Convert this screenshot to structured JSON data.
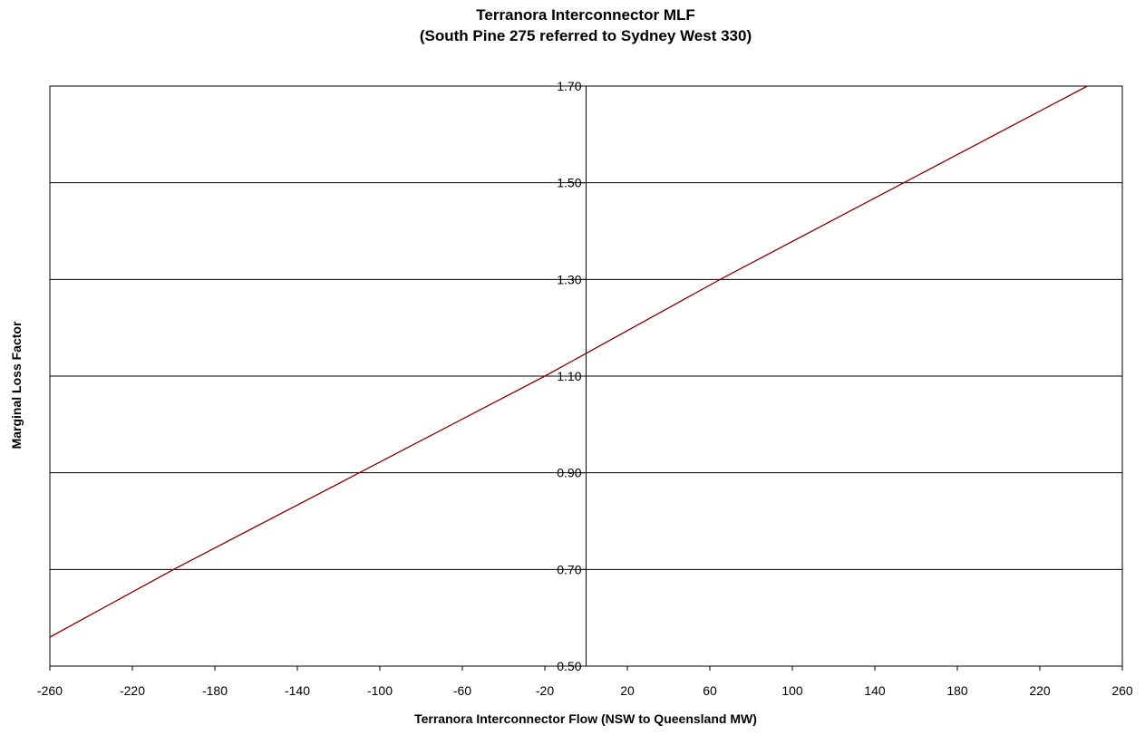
{
  "chart_data": {
    "type": "line",
    "title": "Terranora Interconnector MLF",
    "subtitle": "(South Pine 275 referred to Sydney West 330)",
    "xlabel": "Terranora Interconnector  Flow (NSW to Queensland  MW)",
    "ylabel": "Marginal Loss Factor",
    "xlim": [
      -260,
      260
    ],
    "ylim": [
      0.5,
      1.7
    ],
    "x_ticks": [
      -260,
      -220,
      -180,
      -140,
      -100,
      -60,
      -20,
      20,
      60,
      100,
      140,
      180,
      220,
      260
    ],
    "x_tick_labels": [
      "-260",
      "-220",
      "-180",
      "-140",
      "-100",
      "-60",
      "-20",
      "20",
      "60",
      "100",
      "140",
      "180",
      "220",
      "260"
    ],
    "y_ticks": [
      0.5,
      0.7,
      0.9,
      1.1,
      1.3,
      1.5,
      1.7
    ],
    "y_tick_labels": [
      "0.50",
      "0.70",
      "0.90",
      "1.10",
      "1.30",
      "1.50",
      "1.70"
    ],
    "grid": "horizontal",
    "y_axis_crosses_x_at": 0,
    "series": [
      {
        "color": "#8b0000",
        "x": [
          -260,
          -200,
          -110,
          -20,
          65,
          154,
          243
        ],
        "y": [
          0.56,
          0.7,
          0.9,
          1.1,
          1.3,
          1.5,
          1.7
        ]
      }
    ]
  }
}
